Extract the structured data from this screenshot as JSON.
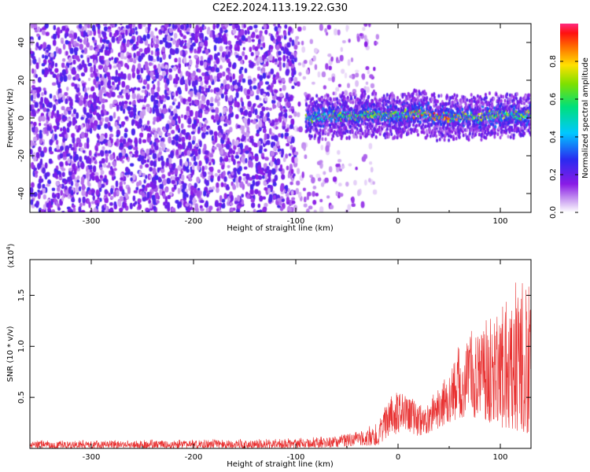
{
  "figure": {
    "title": "C2E2.2024.113.19.22.G30"
  },
  "chart_data": [
    {
      "type": "heatmap",
      "title": "C2E2.2024.113.19.22.G30",
      "xlabel": "Height of straight line (km)",
      "ylabel": "Frequency (Hz)",
      "xlim": [
        -360,
        130
      ],
      "ylim": [
        -50,
        50
      ],
      "xticks": [
        -300,
        -200,
        -100,
        0,
        100
      ],
      "yticks": [
        -40,
        -20,
        0,
        20,
        40
      ],
      "xtick_labels": [
        "-300",
        "-200",
        "-100",
        "0",
        "100"
      ],
      "ytick_labels": [
        "-40",
        "-20",
        "0",
        "20",
        "40"
      ],
      "colorbar": {
        "label": "Normalized spectral amplitude",
        "range": [
          0.0,
          1.0
        ],
        "ticks": [
          0.0,
          0.2,
          0.4,
          0.6,
          0.8
        ],
        "tick_labels": [
          "0.0",
          "0.2",
          "0.4",
          "0.6",
          "0.8"
        ],
        "colormap": "rainbow (white → violet → blue → cyan → green → yellow → red → magenta)"
      },
      "regions": [
        {
          "x_range": [
            -360,
            -100
          ],
          "description": "broadband noise across all frequencies",
          "amplitude": [
            0.05,
            0.25
          ]
        },
        {
          "x_range": [
            -100,
            -20
          ],
          "description": "noise fading out",
          "amplitude": [
            0.02,
            0.15
          ]
        },
        {
          "x_range": [
            -90,
            130
          ],
          "description": "narrow signal band near 0 Hz",
          "amplitude": [
            0.3,
            0.95
          ]
        }
      ],
      "signal_band": {
        "x": [
          -90,
          -60,
          -30,
          0,
          20,
          40,
          60,
          80,
          100,
          120,
          130
        ],
        "center_hz": [
          0,
          1,
          2,
          1,
          3,
          0,
          1,
          0,
          2,
          1,
          2
        ]
      },
      "grid": false,
      "grid_size": [
        490,
        100
      ]
    },
    {
      "type": "line",
      "xlabel": "Height of straight line (km)",
      "ylabel": "SNR (10 * v/v)",
      "y_multiplier_label": "(x10",
      "y_multiplier_exponent": "4",
      "y_multiplier_suffix": ")",
      "xlim": [
        -360,
        130
      ],
      "ylim": [
        0,
        1.85
      ],
      "y_unit": "x10^4",
      "xticks": [
        -300,
        -200,
        -100,
        0,
        100
      ],
      "yticks": [
        0.5,
        1.0,
        1.5
      ],
      "xtick_labels": [
        "-300",
        "-200",
        "-100",
        "0",
        "100"
      ],
      "ytick_labels": [
        "0.5",
        "1.0",
        "1.5"
      ],
      "series": [
        {
          "color": "#e83030",
          "envelope_x": [
            -360,
            -300,
            -200,
            -100,
            -50,
            -20,
            -10,
            0,
            10,
            20,
            30,
            40,
            50,
            60,
            70,
            80,
            90,
            100,
            110,
            120,
            130
          ],
          "envelope_low": [
            0.0,
            0.0,
            0.0,
            0.0,
            0.01,
            0.03,
            0.1,
            0.15,
            0.15,
            0.12,
            0.15,
            0.2,
            0.25,
            0.3,
            0.3,
            0.3,
            0.25,
            0.2,
            0.2,
            0.15,
            0.15
          ],
          "envelope_high": [
            0.08,
            0.08,
            0.09,
            0.1,
            0.14,
            0.25,
            0.5,
            0.65,
            0.55,
            0.45,
            0.48,
            0.6,
            0.8,
            1.1,
            1.2,
            1.25,
            1.3,
            1.4,
            1.5,
            1.85,
            1.6
          ]
        }
      ],
      "grid": false
    }
  ]
}
